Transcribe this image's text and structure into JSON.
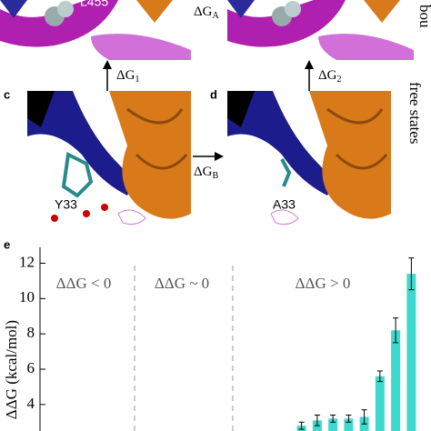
{
  "panels": {
    "bound_residue": "L455",
    "bound_label": "bou",
    "dG_A": {
      "symbol": "ΔG",
      "sub": "A"
    },
    "dG_1": {
      "symbol": "ΔG",
      "sub": "1"
    },
    "dG_2": {
      "symbol": "ΔG",
      "sub": "2"
    },
    "dG_B": {
      "symbol": "ΔG",
      "sub": "B"
    },
    "c": "c",
    "d": "d",
    "e": "e",
    "residue_c": "Y33",
    "residue_d": "A33",
    "free_label": "free states"
  },
  "chart_data": {
    "type": "bar",
    "ylabel": "ΔΔG (kcal/mol)",
    "regions": [
      "ΔΔG < 0",
      "ΔΔG ~ 0",
      "ΔΔG > 0"
    ],
    "categories": [
      null,
      null,
      null,
      null,
      null,
      null,
      null,
      null
    ],
    "values": [
      2.8,
      3.1,
      3.2,
      3.2,
      3.3,
      5.6,
      8.2,
      11.4
    ],
    "errors": [
      0.2,
      0.3,
      0.2,
      0.2,
      0.4,
      0.3,
      0.7,
      0.9
    ],
    "color": "#3dd9cc",
    "ylim": [
      2.5,
      12.9
    ],
    "yticks": [
      4,
      6,
      8,
      10,
      12
    ]
  }
}
